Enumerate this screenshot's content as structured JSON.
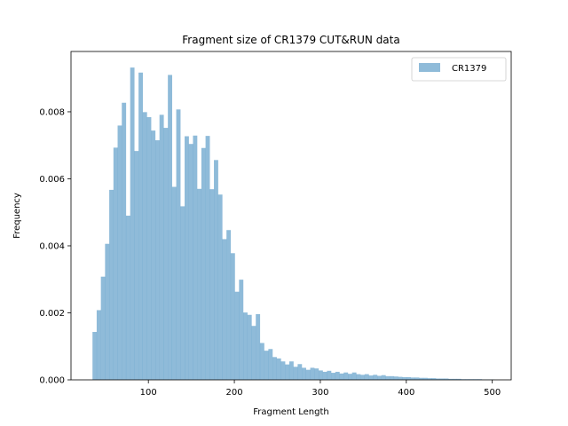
{
  "chart_data": {
    "type": "bar",
    "title": "Fragment size of CR1379 CUT&RUN data",
    "xlabel": "Fragment Length",
    "ylabel": "Frequency",
    "xlim": [
      10,
      522
    ],
    "ylim": [
      0,
      0.0098
    ],
    "xticks": [
      100,
      200,
      300,
      400,
      500
    ],
    "xtick_labels": [
      "100",
      "200",
      "300",
      "400",
      "500"
    ],
    "yticks": [
      0,
      0.002,
      0.004,
      0.006,
      0.008
    ],
    "ytick_labels": [
      "0.000",
      "0.002",
      "0.004",
      "0.006",
      "0.008"
    ],
    "grid": false,
    "legend_position": "top-right",
    "bin_start": 35,
    "bin_width": 4.87,
    "series": [
      {
        "name": "CR1379",
        "color": "#1f77b4",
        "opacity": 0.5,
        "values": [
          0.00143,
          0.00208,
          0.00308,
          0.00406,
          0.00567,
          0.00693,
          0.00759,
          0.00827,
          0.0049,
          0.00932,
          0.00683,
          0.00917,
          0.00799,
          0.00784,
          0.00744,
          0.00715,
          0.00791,
          0.00752,
          0.0091,
          0.00576,
          0.00807,
          0.00518,
          0.00727,
          0.00704,
          0.00729,
          0.0057,
          0.00692,
          0.00728,
          0.00569,
          0.00656,
          0.00553,
          0.0042,
          0.00447,
          0.00378,
          0.00263,
          0.00299,
          0.00201,
          0.00194,
          0.00161,
          0.00196,
          0.0011,
          0.00087,
          0.00092,
          0.00068,
          0.00064,
          0.00055,
          0.00046,
          0.00055,
          0.00039,
          0.00047,
          0.00036,
          0.0003,
          0.00036,
          0.00034,
          0.00028,
          0.00024,
          0.00027,
          0.00021,
          0.00024,
          0.00019,
          0.00022,
          0.00018,
          0.00022,
          0.00017,
          0.00015,
          0.00017,
          0.00013,
          0.00015,
          0.00012,
          0.00014,
          0.00011,
          0.00011,
          0.0001,
          9e-05,
          8e-05,
          8e-05,
          7e-05,
          7e-05,
          6e-05,
          6e-05,
          5e-05,
          5e-05,
          4e-05,
          4e-05,
          4e-05,
          3e-05,
          3e-05,
          3e-05,
          2e-05,
          2e-05,
          2e-05,
          2e-05,
          2e-05,
          1e-05,
          1e-05,
          1e-05
        ]
      }
    ]
  }
}
